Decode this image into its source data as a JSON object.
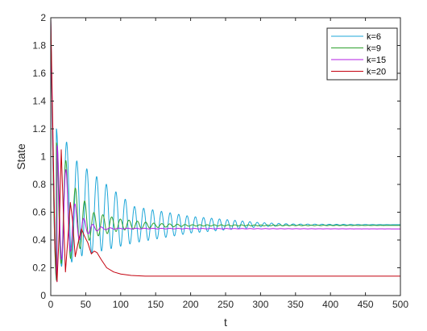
{
  "chart_data": {
    "type": "line",
    "title": "",
    "xlabel": "t",
    "ylabel": "State",
    "xlim": [
      0,
      500
    ],
    "ylim": [
      0,
      2
    ],
    "xticks": [
      0,
      50,
      100,
      150,
      200,
      250,
      300,
      350,
      400,
      450,
      500
    ],
    "yticks": [
      0,
      0.2,
      0.4,
      0.6,
      0.8,
      1,
      1.2,
      1.4,
      1.6,
      1.8,
      2
    ],
    "grid": false,
    "legend_position": "top-right",
    "series": [
      {
        "name": "k=6",
        "color": "#1ea7d9",
        "start": 2.0,
        "dip_t": 8,
        "dip_v": 0.12,
        "settle": 0.51,
        "peaks": [
          [
            15,
            1.2
          ],
          [
            32,
            0.99
          ],
          [
            120,
            0.64
          ],
          [
            200,
            0.57
          ],
          [
            300,
            0.525
          ],
          [
            350,
            0.515
          ],
          [
            500,
            0.51
          ]
        ],
        "troughs": [
          [
            22,
            0.21
          ],
          [
            40,
            0.28
          ],
          [
            120,
            0.38
          ],
          [
            200,
            0.45
          ],
          [
            300,
            0.495
          ],
          [
            350,
            0.505
          ],
          [
            500,
            0.51
          ]
        ],
        "period_start": 15,
        "period_end": 10.3,
        "extra_points": []
      },
      {
        "name": "k=9",
        "color": "#2ca02c",
        "start": 2.0,
        "dip_t": 8,
        "dip_v": 0.11,
        "settle": 0.505,
        "peaks": [
          [
            15,
            1.1
          ],
          [
            30,
            0.81
          ],
          [
            60,
            0.6
          ],
          [
            100,
            0.55
          ],
          [
            150,
            0.52
          ],
          [
            200,
            0.51
          ],
          [
            500,
            0.505
          ]
        ],
        "troughs": [
          [
            22,
            0.23
          ],
          [
            40,
            0.33
          ],
          [
            60,
            0.42
          ],
          [
            100,
            0.47
          ],
          [
            150,
            0.49
          ],
          [
            200,
            0.5
          ],
          [
            500,
            0.505
          ]
        ],
        "period_start": 14,
        "period_end": 9,
        "extra_points": []
      },
      {
        "name": "k=15",
        "color": "#b31de3",
        "start": 2.0,
        "dip_t": 9,
        "dip_v": 0.1,
        "settle": 0.48,
        "peaks": [
          [
            15,
            1.08
          ],
          [
            29,
            0.72
          ],
          [
            42,
            0.58
          ],
          [
            55,
            0.52
          ],
          [
            75,
            0.49
          ],
          [
            100,
            0.485
          ],
          [
            500,
            0.48
          ]
        ],
        "troughs": [
          [
            21,
            0.26
          ],
          [
            36,
            0.38
          ],
          [
            48,
            0.43
          ],
          [
            60,
            0.46
          ],
          [
            80,
            0.475
          ],
          [
            100,
            0.48
          ],
          [
            500,
            0.48
          ]
        ],
        "period_start": 13,
        "period_end": 11,
        "extra_points": []
      },
      {
        "name": "k=20",
        "color": "#c4000e",
        "start": 2.0,
        "dip_t": 9,
        "dip_v": 0.1,
        "settle": 0.14,
        "peaks": [],
        "troughs": [],
        "period_start": 0,
        "period_end": 0,
        "extra_points": [
          [
            0,
            2.0
          ],
          [
            3,
            1.2
          ],
          [
            6,
            0.35
          ],
          [
            9,
            0.1
          ],
          [
            12,
            0.45
          ],
          [
            15,
            1.05
          ],
          [
            18,
            0.6
          ],
          [
            21,
            0.17
          ],
          [
            25,
            0.45
          ],
          [
            28,
            0.67
          ],
          [
            31,
            0.55
          ],
          [
            35,
            0.28
          ],
          [
            40,
            0.4
          ],
          [
            44,
            0.48
          ],
          [
            48,
            0.43
          ],
          [
            53,
            0.38
          ],
          [
            58,
            0.3
          ],
          [
            62,
            0.32
          ],
          [
            66,
            0.31
          ],
          [
            72,
            0.26
          ],
          [
            80,
            0.2
          ],
          [
            90,
            0.17
          ],
          [
            100,
            0.155
          ],
          [
            115,
            0.145
          ],
          [
            135,
            0.14
          ],
          [
            500,
            0.14
          ]
        ]
      }
    ]
  }
}
